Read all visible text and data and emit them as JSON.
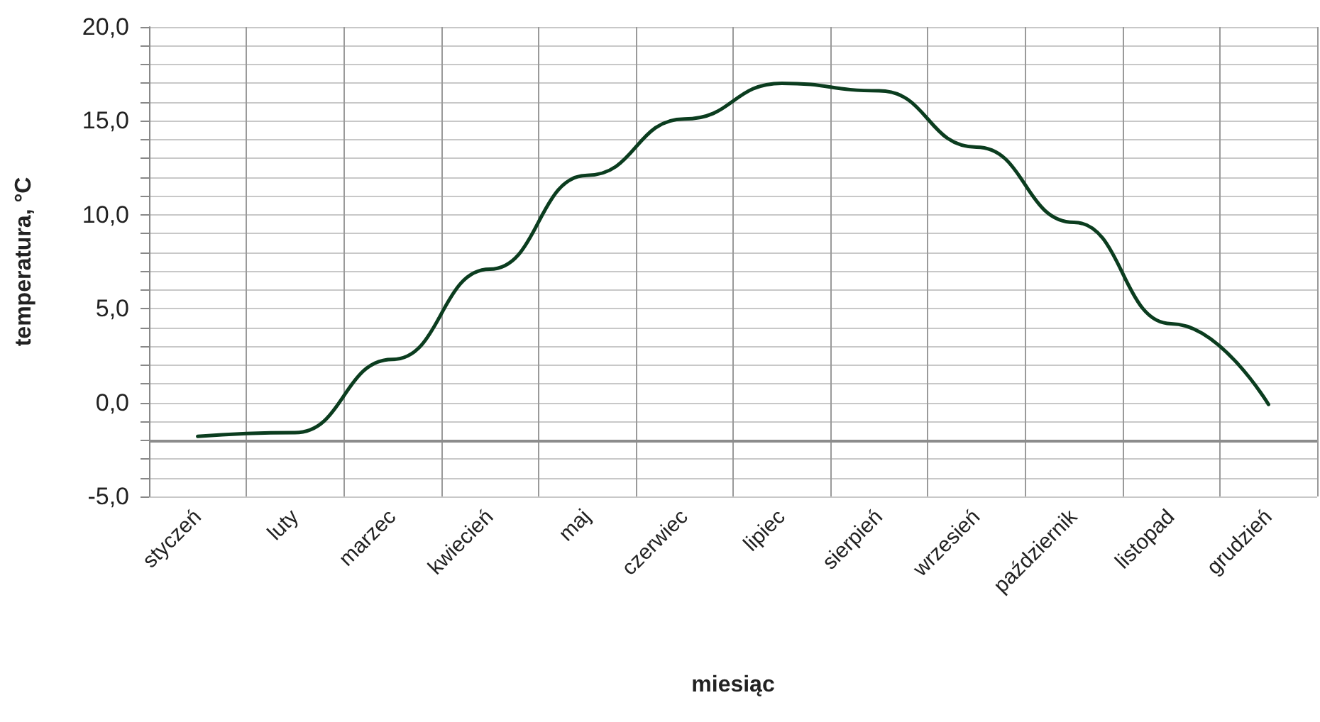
{
  "chart_data": {
    "type": "line",
    "xlabel": "miesiąc",
    "ylabel": "temperatura, °C",
    "categories": [
      "styczeń",
      "luty",
      "marzec",
      "kwiecień",
      "maj",
      "czerwiec",
      "lipiec",
      "sierpień",
      "wrzesień",
      "październik",
      "listopad",
      "grudzień"
    ],
    "series": [
      {
        "color": "#0b3d1f",
        "values": [
          -1.8,
          -1.6,
          2.3,
          7.1,
          12.1,
          15.1,
          17.0,
          16.6,
          13.6,
          9.6,
          4.2,
          -0.1
        ]
      }
    ],
    "ylim": [
      -5,
      20
    ],
    "yticks": [
      {
        "value": -5,
        "label": "-5,0"
      },
      {
        "value": -4,
        "label": null
      },
      {
        "value": -3,
        "label": null
      },
      {
        "value": -2,
        "label": null
      },
      {
        "value": -1,
        "label": null
      },
      {
        "value": 0,
        "label": "0,0"
      },
      {
        "value": 1,
        "label": null
      },
      {
        "value": 2,
        "label": null
      },
      {
        "value": 3,
        "label": null
      },
      {
        "value": 4,
        "label": null
      },
      {
        "value": 5,
        "label": "5,0"
      },
      {
        "value": 6,
        "label": null
      },
      {
        "value": 7,
        "label": null
      },
      {
        "value": 8,
        "label": null
      },
      {
        "value": 9,
        "label": null
      },
      {
        "value": 10,
        "label": "10,0"
      },
      {
        "value": 11,
        "label": null
      },
      {
        "value": 12,
        "label": null
      },
      {
        "value": 13,
        "label": null
      },
      {
        "value": 14,
        "label": null
      },
      {
        "value": 15,
        "label": "15,0"
      },
      {
        "value": 16,
        "label": null
      },
      {
        "value": 17,
        "label": null
      },
      {
        "value": 18,
        "label": null
      },
      {
        "value": 19,
        "label": null
      },
      {
        "value": 20,
        "label": "20,0"
      }
    ],
    "ref_lines": [
      {
        "axis": "y",
        "value": -2,
        "color": "#8c8c8c"
      }
    ],
    "grid": true,
    "marker": "none",
    "line_style": "solid"
  }
}
